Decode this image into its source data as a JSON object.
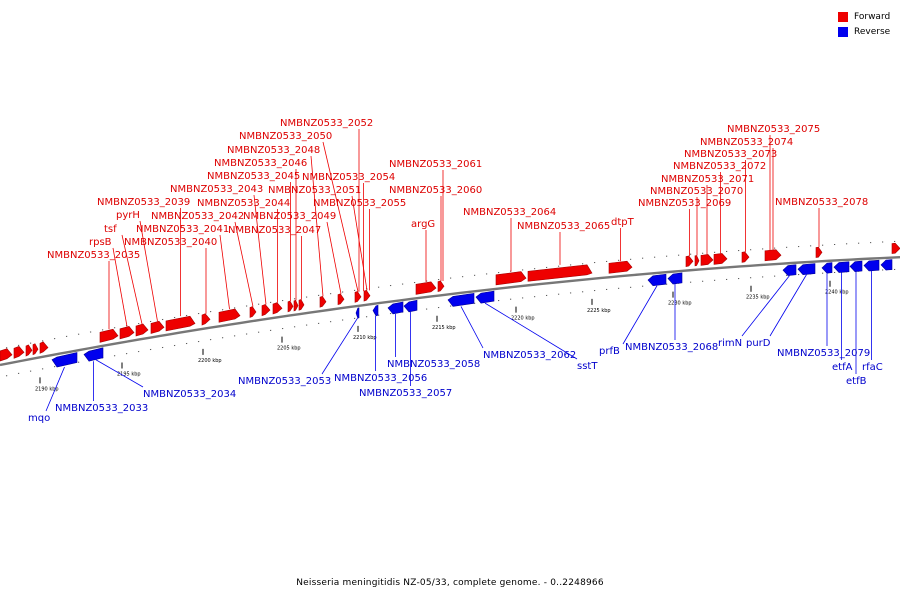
{
  "legend": [
    {
      "label": "Forward",
      "color": "#ee0000"
    },
    {
      "label": "Reverse",
      "color": "#0000ee"
    }
  ],
  "caption": "Neisseria meningitidis NZ-05/33, complete genome. - 0..2248966",
  "colors": {
    "forward": "#ee0000",
    "reverse": "#0000ee",
    "backbone": "#777777"
  },
  "ticks": [
    {
      "label": "2190 kbp"
    },
    {
      "label": "2195 kbp"
    },
    {
      "label": "2200 kbp"
    },
    {
      "label": "2205 kbp"
    },
    {
      "label": "2210 kbp"
    },
    {
      "label": "2215 kbp"
    },
    {
      "label": "2220 kbp"
    },
    {
      "label": "2225 kbp"
    },
    {
      "label": "2230 kbp"
    },
    {
      "label": "2235 kbp"
    },
    {
      "label": "2240 kbp"
    }
  ],
  "forward_labels": [
    "NMBNZ0533_2035",
    "rpsB",
    "tsf",
    "pyrH",
    "NMBNZ0533_2039",
    "NMBNZ0533_2040",
    "NMBNZ0533_2041",
    "NMBNZ0533_2042",
    "NMBNZ0533_2043",
    "NMBNZ0533_2044",
    "NMBNZ0533_2045",
    "NMBNZ0533_2046",
    "NMBNZ0533_2047",
    "NMBNZ0533_2048",
    "NMBNZ0533_2049",
    "NMBNZ0533_2050",
    "NMBNZ0533_2051",
    "NMBNZ0533_2052",
    "NMBNZ0533_2054",
    "NMBNZ0533_2055",
    "argG",
    "NMBNZ0533_2060",
    "NMBNZ0533_2061",
    "NMBNZ0533_2064",
    "NMBNZ0533_2065",
    "dtpT",
    "NMBNZ0533_2069",
    "NMBNZ0533_2070",
    "NMBNZ0533_2071",
    "NMBNZ0533_2072",
    "NMBNZ0533_2073",
    "NMBNZ0533_2074",
    "NMBNZ0533_2075",
    "NMBNZ0533_2078"
  ],
  "reverse_labels": [
    "mqo",
    "NMBNZ0533_2033",
    "NMBNZ0533_2034",
    "NMBNZ0533_2053",
    "NMBNZ0533_2056",
    "NMBNZ0533_2057",
    "NMBNZ0533_2058",
    "NMBNZ0533_2062",
    "sstT",
    "prfB",
    "NMBNZ0533_2068",
    "rimN",
    "purD",
    "NMBNZ0533_2079",
    "etfA",
    "etfB",
    "rfaC"
  ]
}
